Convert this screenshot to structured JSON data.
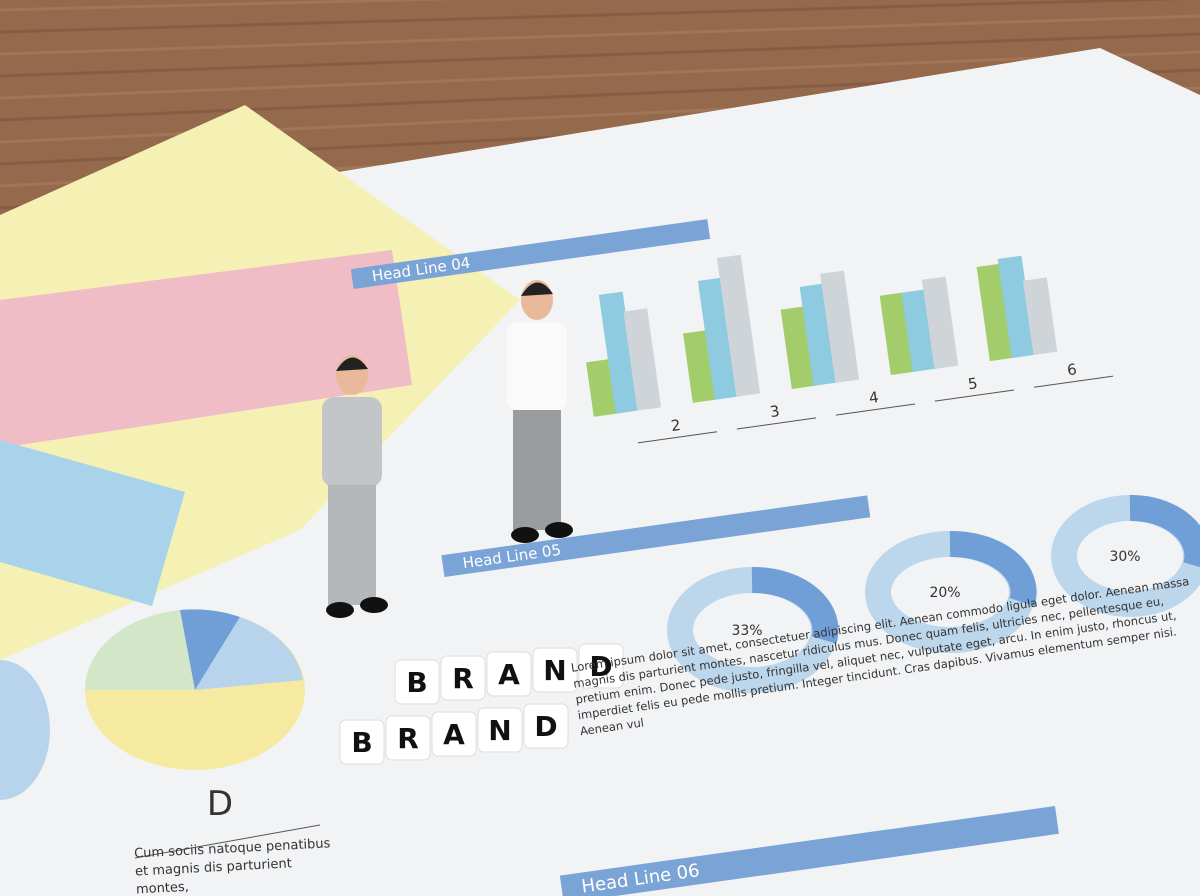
{
  "document": {
    "headlines": [
      "Head Line 04",
      "Head Line 05",
      "Head Line 06"
    ],
    "bar_labels": [
      2,
      3,
      4,
      5,
      6
    ],
    "donut_labels": [
      "33%",
      "20%",
      "30%"
    ],
    "pie_label": "D",
    "blocks": [
      [
        "B",
        "R",
        "A",
        "N",
        "D"
      ],
      [
        "B",
        "R",
        "A",
        "N",
        "D"
      ]
    ],
    "paragraph": "Lorem ipsum dolor sit amet, consectetuer adipiscing elit. Aenean commodo ligula eget dolor. Aenean massa magnis dis parturient montes, nascetur ridiculus mus. Donec quam felis, ultricies nec, pellentesque eu, pretium enim. Donec pede justo, fringilla vel, aliquet nec, vulputate eget, arcu. In enim justo, rhoncus ut, imperdiet felis eu pede mollis pretium. Integer tincidunt. Cras dapibus. Vivamus elementum semper nisi. Aenean vul",
    "side_text": "Cum sociis natoque penatibus et magnis dis parturient montes,"
  }
}
